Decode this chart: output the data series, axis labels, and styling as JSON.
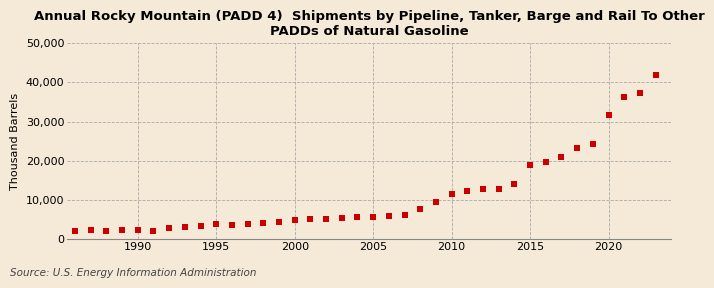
{
  "title": "Annual Rocky Mountain (PADD 4)  Shipments by Pipeline, Tanker, Barge and Rail To Other\nPADDs of Natural Gasoline",
  "ylabel": "Thousand Barrels",
  "source": "Source: U.S. Energy Information Administration",
  "background_color": "#f5ead8",
  "marker_color": "#cc0000",
  "years": [
    1986,
    1987,
    1988,
    1989,
    1990,
    1991,
    1992,
    1993,
    1994,
    1995,
    1996,
    1997,
    1998,
    1999,
    2000,
    2001,
    2002,
    2003,
    2004,
    2005,
    2006,
    2007,
    2008,
    2009,
    2010,
    2011,
    2012,
    2013,
    2014,
    2015,
    2016,
    2017,
    2018,
    2019,
    2020,
    2021,
    2022,
    2023
  ],
  "values": [
    2100,
    2200,
    2100,
    2400,
    2200,
    2100,
    2700,
    3000,
    3300,
    3800,
    3700,
    3900,
    4200,
    4400,
    4900,
    5000,
    5200,
    5300,
    5600,
    5700,
    5800,
    6200,
    7600,
    9500,
    11500,
    12200,
    12700,
    12900,
    14000,
    18900,
    19800,
    20900,
    23300,
    24400,
    31800,
    36200,
    37300,
    41800
  ],
  "ylim": [
    0,
    50000
  ],
  "yticks": [
    0,
    10000,
    20000,
    30000,
    40000,
    50000
  ],
  "xlim": [
    1985.5,
    2024
  ],
  "xticks": [
    1990,
    1995,
    2000,
    2005,
    2010,
    2015,
    2020
  ],
  "grid_color": "#aaaaaa",
  "title_fontsize": 9.5,
  "axis_fontsize": 8,
  "ylabel_fontsize": 8,
  "source_fontsize": 7.5
}
